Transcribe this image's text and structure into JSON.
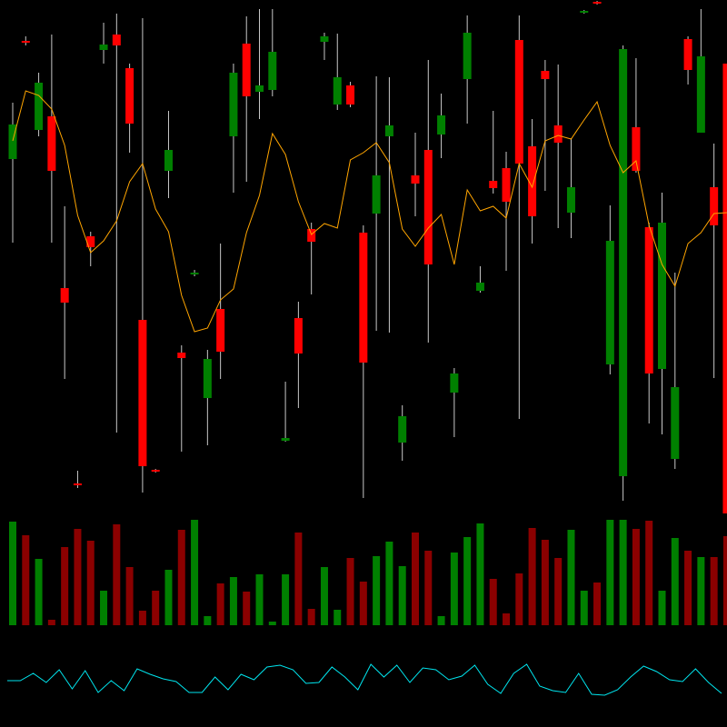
{
  "chart_data": [
    {
      "type": "candlestick",
      "up_color": "#008000",
      "down_color": "#ff0000",
      "wick_color": "#c8c8c8",
      "ylim": [
        0,
        560
      ],
      "open": [
        385,
        515,
        417,
        432,
        243,
        28,
        300,
        505,
        522,
        485,
        208,
        43,
        372,
        172,
        258,
        122,
        220,
        410,
        512,
        459,
        461,
        75,
        210,
        308,
        514,
        445,
        466,
        304,
        325,
        410,
        73,
        367,
        395,
        412,
        128,
        473,
        240,
        361,
        375,
        516,
        399,
        482,
        422,
        326,
        546,
        558,
        159,
        36,
        420,
        310,
        154,
        55,
        517,
        414,
        354,
        490
      ],
      "high": [
        447,
        520,
        480,
        522,
        333,
        42,
        305,
        535,
        545,
        490,
        540,
        44,
        438,
        180,
        263,
        175,
        292,
        490,
        542,
        550,
        550,
        140,
        228,
        315,
        524,
        523,
        470,
        312,
        476,
        475,
        114,
        414,
        494,
        457,
        155,
        543,
        267,
        438,
        393,
        543,
        429,
        494,
        489,
        408,
        549,
        559,
        334,
        510,
        496,
        315,
        348,
        260,
        520,
        550,
        402,
        490
      ],
      "low": [
        293,
        510,
        410,
        293,
        143,
        23,
        267,
        490,
        84,
        392,
        18,
        40,
        342,
        63,
        256,
        70,
        143,
        348,
        360,
        429,
        454,
        74,
        111,
        236,
        494,
        439,
        442,
        12,
        196,
        194,
        53,
        322,
        183,
        386,
        79,
        424,
        238,
        347,
        262,
        99,
        292,
        350,
        309,
        298,
        545,
        555,
        148,
        9,
        370,
        94,
        82,
        44,
        467,
        414,
        144,
        -5
      ],
      "close": [
        423,
        513,
        469,
        372,
        227,
        26,
        288,
        511,
        510,
        424,
        47,
        41,
        395,
        166,
        260,
        165,
        173,
        480,
        454,
        466,
        503,
        78,
        171,
        294,
        520,
        475,
        445,
        161,
        367,
        422,
        102,
        358,
        269,
        433,
        149,
        524,
        249,
        353,
        338,
        380,
        322,
        473,
        403,
        354,
        548,
        556,
        295,
        506,
        372,
        149,
        315,
        134,
        483,
        498,
        312,
        -5
      ],
      "series": [
        {
          "color": "#ffa500",
          "values": [
            405,
            460,
            455,
            440,
            400,
            323,
            282,
            295,
            317,
            360,
            380,
            330,
            305,
            235,
            195,
            199,
            230,
            242,
            304,
            345,
            413,
            390,
            338,
            302,
            314,
            309,
            384,
            392,
            403,
            381,
            308,
            289,
            309,
            324,
            269,
            351,
            328,
            333,
            320,
            380,
            354,
            405,
            411,
            407,
            428,
            448,
            400,
            370,
            383,
            312,
            269,
            245,
            292,
            304,
            325,
            326
          ]
        }
      ]
    },
    {
      "type": "bar",
      "up_color": "#008000",
      "down_color": "#8b0000",
      "ylim": [
        0,
        120
      ],
      "values": [
        114,
        99,
        73,
        6,
        86,
        106,
        93,
        38,
        111,
        64,
        16,
        38,
        61,
        105,
        116,
        10,
        46,
        53,
        37,
        56,
        4,
        56,
        102,
        18,
        64,
        17,
        74,
        48,
        76,
        92,
        65,
        102,
        82,
        10,
        80,
        97,
        112,
        51,
        13,
        57,
        107,
        94,
        74,
        105,
        38,
        47,
        116,
        116,
        106,
        115,
        38,
        96,
        82,
        75,
        75,
        98
      ]
    },
    {
      "type": "line",
      "color": "#00e5ee",
      "ylim": [
        0,
        100
      ],
      "values": [
        41,
        41,
        49,
        39,
        53,
        32,
        52,
        28,
        41,
        30,
        54,
        48,
        43,
        40,
        28,
        28,
        45,
        31,
        48,
        42,
        56,
        58,
        53,
        38,
        39,
        56,
        45,
        31,
        59,
        45,
        58,
        39,
        55,
        53,
        42,
        46,
        58,
        37,
        27,
        49,
        59,
        35,
        30,
        28,
        49,
        26,
        25,
        31,
        45,
        57,
        51,
        42,
        40,
        54,
        39,
        27
      ]
    }
  ]
}
